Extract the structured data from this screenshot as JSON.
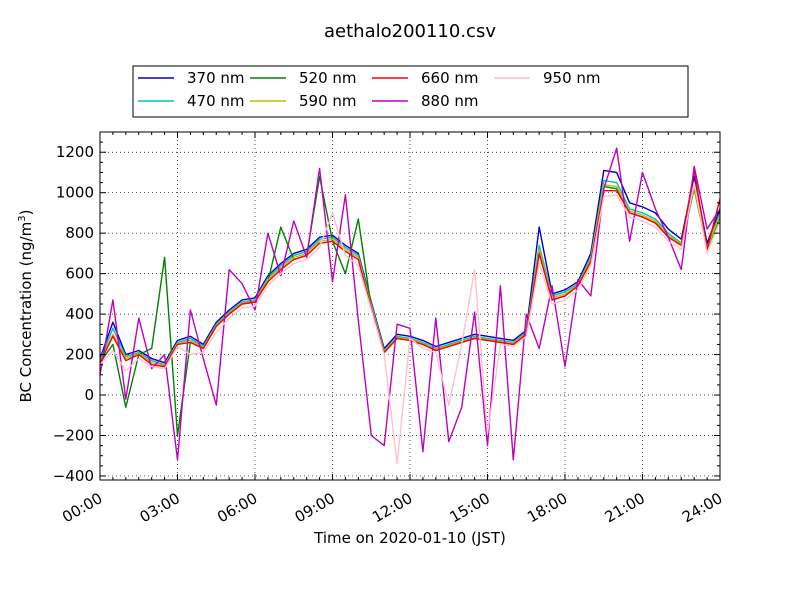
{
  "chart_data": {
    "type": "line",
    "title": "aethalo200110.csv",
    "xlabel": "Time on 2020-01-10 (JST)",
    "ylabel_main": "BC Concentration (ng/m",
    "ylabel_sup": "3",
    "ylabel_end": ")",
    "xlim": [
      0,
      24
    ],
    "ylim": [
      -420,
      1300
    ],
    "x_ticks": [
      {
        "value": 0,
        "label": "00:00"
      },
      {
        "value": 3,
        "label": "03:00"
      },
      {
        "value": 6,
        "label": "06:00"
      },
      {
        "value": 9,
        "label": "09:00"
      },
      {
        "value": 12,
        "label": "12:00"
      },
      {
        "value": 15,
        "label": "15:00"
      },
      {
        "value": 18,
        "label": "18:00"
      },
      {
        "value": 21,
        "label": "21:00"
      },
      {
        "value": 24,
        "label": "24:00"
      }
    ],
    "y_ticks": [
      {
        "value": -400,
        "label": "−400"
      },
      {
        "value": -200,
        "label": "−200"
      },
      {
        "value": 0,
        "label": "0"
      },
      {
        "value": 200,
        "label": "200"
      },
      {
        "value": 400,
        "label": "400"
      },
      {
        "value": 600,
        "label": "600"
      },
      {
        "value": 800,
        "label": "800"
      },
      {
        "value": 1000,
        "label": "1000"
      },
      {
        "value": 1200,
        "label": "1200"
      }
    ],
    "grid": true,
    "legend_position": "top",
    "x": [
      0,
      0.5,
      1,
      1.5,
      2,
      2.5,
      3,
      3.5,
      4,
      4.5,
      5,
      5.5,
      6,
      6.5,
      7,
      7.5,
      8,
      8.5,
      9,
      9.5,
      10,
      10.5,
      11,
      11.5,
      12,
      12.5,
      13,
      13.5,
      14,
      14.5,
      15,
      15.5,
      16,
      16.5,
      17,
      17.5,
      18,
      18.5,
      19,
      19.5,
      20,
      20.5,
      21,
      21.5,
      22,
      22.5,
      23,
      23.5,
      24
    ],
    "series": [
      {
        "name": "370 nm",
        "color": "#0000cc",
        "values": [
          180,
          360,
          200,
          220,
          180,
          160,
          270,
          290,
          250,
          360,
          420,
          470,
          480,
          590,
          650,
          700,
          720,
          780,
          790,
          740,
          700,
          460,
          230,
          300,
          290,
          270,
          240,
          260,
          280,
          300,
          290,
          280,
          270,
          320,
          830,
          500,
          520,
          560,
          700,
          1110,
          1100,
          950,
          930,
          900,
          820,
          770,
          1080,
          750,
          920
        ]
      },
      {
        "name": "470 nm",
        "color": "#00bfbf",
        "values": [
          170,
          330,
          190,
          210,
          170,
          150,
          260,
          280,
          240,
          350,
          410,
          460,
          470,
          580,
          640,
          690,
          710,
          770,
          780,
          730,
          690,
          450,
          220,
          290,
          280,
          260,
          230,
          250,
          270,
          290,
          280,
          270,
          260,
          310,
          740,
          490,
          510,
          550,
          680,
          1060,
          1050,
          920,
          900,
          870,
          800,
          750,
          1050,
          730,
          900
        ]
      },
      {
        "name": "520 nm",
        "color": "#008000",
        "values": [
          160,
          250,
          -60,
          200,
          230,
          680,
          -200,
          260,
          230,
          340,
          400,
          450,
          460,
          560,
          830,
          670,
          690,
          1080,
          760,
          600,
          870,
          430,
          210,
          280,
          270,
          250,
          220,
          240,
          260,
          280,
          270,
          260,
          250,
          300,
          700,
          470,
          490,
          540,
          660,
          1030,
          1020,
          900,
          880,
          850,
          780,
          740,
          1020,
          720,
          880
        ]
      },
      {
        "name": "590 nm",
        "color": "#bfbf00",
        "values": [
          165,
          300,
          180,
          205,
          160,
          145,
          255,
          270,
          235,
          345,
          405,
          455,
          465,
          570,
          630,
          680,
          700,
          760,
          770,
          720,
          680,
          440,
          215,
          285,
          275,
          255,
          225,
          245,
          265,
          285,
          275,
          265,
          255,
          305,
          720,
          480,
          500,
          545,
          670,
          1040,
          1030,
          910,
          890,
          860,
          790,
          745,
          1030,
          725,
          890
        ]
      },
      {
        "name": "660 nm",
        "color": "#ff0000",
        "values": [
          160,
          290,
          170,
          200,
          150,
          140,
          250,
          260,
          230,
          340,
          400,
          450,
          460,
          560,
          620,
          670,
          690,
          750,
          760,
          710,
          670,
          430,
          210,
          280,
          270,
          250,
          220,
          240,
          260,
          280,
          270,
          260,
          250,
          300,
          700,
          470,
          490,
          540,
          660,
          1010,
          1010,
          900,
          880,
          850,
          780,
          740,
          1110,
          720,
          970
        ]
      },
      {
        "name": "880 nm",
        "color": "#bf00bf",
        "values": [
          100,
          470,
          -20,
          380,
          130,
          200,
          -320,
          420,
          180,
          -50,
          620,
          550,
          420,
          800,
          590,
          860,
          680,
          1120,
          560,
          990,
          370,
          -200,
          -250,
          350,
          330,
          -280,
          380,
          -230,
          -60,
          410,
          -250,
          540,
          -320,
          400,
          230,
          540,
          140,
          570,
          490,
          1020,
          1220,
          760,
          1100,
          920,
          780,
          620,
          1130,
          820,
          920
        ]
      },
      {
        "name": "950 nm",
        "color": "#ffc0cb",
        "values": [
          150,
          220,
          120,
          180,
          140,
          130,
          240,
          200,
          210,
          310,
          380,
          430,
          440,
          540,
          600,
          650,
          670,
          730,
          900,
          690,
          640,
          420,
          200,
          -340,
          280,
          230,
          210,
          -50,
          250,
          620,
          -190,
          250,
          240,
          290,
          650,
          450,
          470,
          520,
          640,
          980,
          990,
          880,
          860,
          830,
          760,
          720,
          1050,
          700,
          860
        ]
      }
    ]
  }
}
